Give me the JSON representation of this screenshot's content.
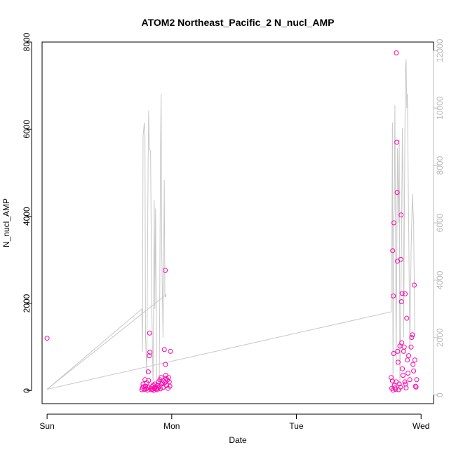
{
  "chart_data": {
    "type": "scatter",
    "title": "ATOM2 Northeast_Pacific_2 N_nucl_AMP",
    "xlabel": "Date",
    "ylabel": "N_nucl_AMP",
    "x_ticks": [
      {
        "label": "Sun",
        "value": 0
      },
      {
        "label": "Mon",
        "value": 1
      },
      {
        "label": "Tue",
        "value": 2
      },
      {
        "label": "Wed",
        "value": 3
      }
    ],
    "xlim": [
      -0.04,
      3.1
    ],
    "ylim": [
      -300,
      8000
    ],
    "y_ticks": [
      0,
      2000,
      4000,
      6000,
      8000
    ],
    "y2lim": [
      -300,
      12300
    ],
    "y2_ticks": [
      0,
      2000,
      4000,
      6000,
      8000,
      10000,
      12000
    ],
    "colors": {
      "points": "#ff00aa",
      "line": "#c8c8c8",
      "axis": "#000000",
      "axis2": "#bbbbbb"
    },
    "series": [
      {
        "kind": "points",
        "axis": "left",
        "points": [
          [
            0.0,
            1200
          ],
          [
            0.76,
            20
          ],
          [
            0.765,
            60
          ],
          [
            0.77,
            150
          ],
          [
            0.775,
            90
          ],
          [
            0.78,
            30
          ],
          [
            0.785,
            250
          ],
          [
            0.79,
            100
          ],
          [
            0.795,
            40
          ],
          [
            0.8,
            180
          ],
          [
            0.805,
            10
          ],
          [
            0.81,
            70
          ],
          [
            0.812,
            430
          ],
          [
            0.815,
            230
          ],
          [
            0.82,
            800
          ],
          [
            0.822,
            1320
          ],
          [
            0.825,
            880
          ],
          [
            0.83,
            50
          ],
          [
            0.835,
            20
          ],
          [
            0.84,
            90
          ],
          [
            0.845,
            30
          ],
          [
            0.85,
            120
          ],
          [
            0.855,
            5
          ],
          [
            0.86,
            60
          ],
          [
            0.865,
            150
          ],
          [
            0.87,
            80
          ],
          [
            0.875,
            40
          ],
          [
            0.88,
            20
          ],
          [
            0.885,
            120
          ],
          [
            0.89,
            60
          ],
          [
            0.895,
            200
          ],
          [
            0.9,
            90
          ],
          [
            0.905,
            250
          ],
          [
            0.91,
            40
          ],
          [
            0.915,
            300
          ],
          [
            0.92,
            150
          ],
          [
            0.925,
            180
          ],
          [
            0.93,
            70
          ],
          [
            0.935,
            220
          ],
          [
            0.94,
            940
          ],
          [
            0.945,
            180
          ],
          [
            0.948,
            2760
          ],
          [
            0.95,
            600
          ],
          [
            0.952,
            350
          ],
          [
            0.955,
            280
          ],
          [
            0.96,
            120
          ],
          [
            0.965,
            240
          ],
          [
            0.97,
            50
          ],
          [
            0.975,
            300
          ],
          [
            0.98,
            200
          ],
          [
            0.985,
            100
          ],
          [
            0.99,
            900
          ],
          [
            2.76,
            300
          ],
          [
            2.765,
            50
          ],
          [
            2.77,
            220
          ],
          [
            2.772,
            3210
          ],
          [
            2.775,
            10
          ],
          [
            2.778,
            2170
          ],
          [
            2.78,
            850
          ],
          [
            2.782,
            3850
          ],
          [
            2.785,
            120
          ],
          [
            2.79,
            60
          ],
          [
            2.795,
            30
          ],
          [
            2.8,
            200
          ],
          [
            2.802,
            7750
          ],
          [
            2.805,
            5700
          ],
          [
            2.808,
            4550
          ],
          [
            2.81,
            2970
          ],
          [
            2.812,
            900
          ],
          [
            2.815,
            650
          ],
          [
            2.82,
            20
          ],
          [
            2.825,
            150
          ],
          [
            2.83,
            1020
          ],
          [
            2.835,
            80
          ],
          [
            2.838,
            3010
          ],
          [
            2.84,
            4030
          ],
          [
            2.842,
            2040
          ],
          [
            2.845,
            1100
          ],
          [
            2.848,
            2230
          ],
          [
            2.85,
            500
          ],
          [
            2.855,
            350
          ],
          [
            2.86,
            900
          ],
          [
            2.865,
            1000
          ],
          [
            2.87,
            200
          ],
          [
            2.872,
            2220
          ],
          [
            2.875,
            150
          ],
          [
            2.88,
            60
          ],
          [
            2.885,
            1660
          ],
          [
            2.89,
            700
          ],
          [
            2.895,
            400
          ],
          [
            2.9,
            800
          ],
          [
            2.91,
            250
          ],
          [
            2.92,
            1000
          ],
          [
            2.925,
            1220
          ],
          [
            2.93,
            1280
          ],
          [
            2.935,
            600
          ],
          [
            2.94,
            450
          ],
          [
            2.945,
            2420
          ],
          [
            2.95,
            700
          ],
          [
            2.955,
            100
          ],
          [
            2.96,
            80
          ],
          [
            2.965,
            250
          ]
        ]
      },
      {
        "kind": "line",
        "axis": "right",
        "points": [
          [
            0.0,
            200
          ],
          [
            0.76,
            3000
          ],
          [
            0.765,
            1500
          ],
          [
            0.77,
            9000
          ],
          [
            0.78,
            9500
          ],
          [
            0.785,
            9000
          ],
          [
            0.79,
            2000
          ],
          [
            0.8,
            700
          ],
          [
            0.81,
            8000
          ],
          [
            0.815,
            9900
          ],
          [
            0.82,
            8600
          ],
          [
            0.83,
            8500
          ],
          [
            0.84,
            3000
          ],
          [
            0.85,
            300
          ],
          [
            0.86,
            6800
          ],
          [
            0.865,
            3000
          ],
          [
            0.87,
            6500
          ],
          [
            0.88,
            300
          ],
          [
            0.9,
            200
          ],
          [
            0.91,
            8500
          ],
          [
            0.915,
            10500
          ],
          [
            0.92,
            5000
          ],
          [
            0.93,
            2000
          ],
          [
            0.94,
            7500
          ],
          [
            0.945,
            3500
          ],
          [
            0.95,
            3400
          ],
          [
            0.955,
            3500
          ],
          [
            0.0,
            200
          ],
          [
            2.76,
            2900
          ],
          [
            2.765,
            5000
          ],
          [
            2.77,
            9500
          ],
          [
            2.775,
            300
          ],
          [
            2.78,
            6000
          ],
          [
            2.785,
            6500
          ],
          [
            2.79,
            10100
          ],
          [
            2.8,
            1000
          ],
          [
            2.81,
            8600
          ],
          [
            2.82,
            6000
          ],
          [
            2.825,
            8900
          ],
          [
            2.83,
            400
          ],
          [
            2.84,
            4000
          ],
          [
            2.85,
            9300
          ],
          [
            2.855,
            7000
          ],
          [
            2.86,
            2000
          ],
          [
            2.87,
            9000
          ],
          [
            2.875,
            11400
          ],
          [
            2.88,
            11700
          ],
          [
            2.885,
            10000
          ],
          [
            2.89,
            10500
          ],
          [
            2.9,
            6000
          ],
          [
            2.91,
            1500
          ],
          [
            2.92,
            5000
          ],
          [
            2.93,
            7000
          ],
          [
            2.94,
            6000
          ],
          [
            2.95,
            2000
          ]
        ]
      }
    ]
  }
}
